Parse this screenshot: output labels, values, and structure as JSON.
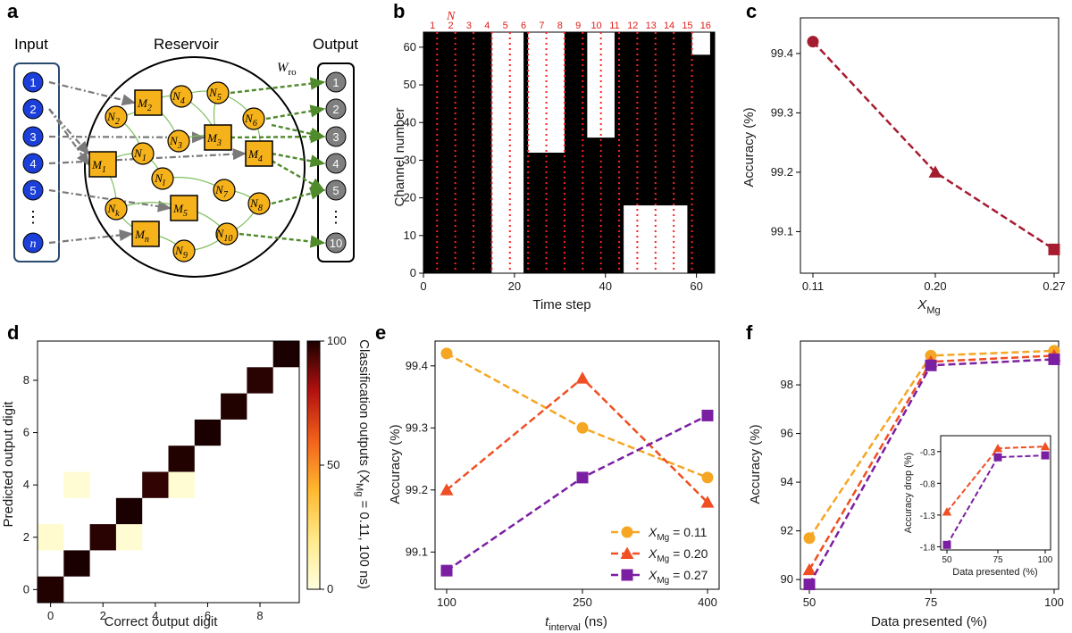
{
  "panel_letters": [
    "a",
    "b",
    "c",
    "d",
    "e",
    "f"
  ],
  "diagram": {
    "input_title": "Input",
    "reservoir_title": "Reservoir",
    "output_title": "Output",
    "wro_label": "W",
    "wro_sub": "ro",
    "input_nodes": [
      "1",
      "2",
      "3",
      "4",
      "5",
      "⋮",
      "n"
    ],
    "output_nodes": [
      "1",
      "2",
      "3",
      "4",
      "5",
      "⋮",
      "10"
    ],
    "memristors": [
      "M2",
      "M3",
      "M1",
      "M4",
      "M5",
      "Mn"
    ],
    "neurons": [
      "N2",
      "N4",
      "N5",
      "N6",
      "N3",
      "N1",
      "Nl",
      "N7",
      "N8",
      "Nk",
      "N9",
      "N10"
    ],
    "colors": {
      "input": "#1b3fd8",
      "output": "#7f7f7f",
      "reservoir_node": "#f5b21b",
      "mem_edge": "#7fbf5f",
      "readout": "#4f8a2b",
      "dash_gray": "#7a7a7a"
    }
  },
  "chart_data": [
    {
      "id": "b",
      "type": "heatmap",
      "xlabel": "Time step",
      "ylabel": "Channel number",
      "xticks": [
        0,
        20,
        40,
        60
      ],
      "yticks": [
        0,
        10,
        20,
        30,
        40,
        50,
        60
      ],
      "xlim": [
        0,
        64
      ],
      "ylim": [
        0,
        64
      ],
      "segment_header": "N",
      "segments": [
        "1",
        "2",
        "3",
        "4",
        "5",
        "6",
        "7",
        "8",
        "9",
        "10",
        "11",
        "12",
        "13",
        "14",
        "15",
        "16"
      ],
      "white_regions": [
        {
          "x0": 15,
          "x1": 22,
          "y0": 0,
          "y1": 64
        },
        {
          "x0": 23,
          "x1": 31,
          "y0": 32,
          "y1": 64
        },
        {
          "x0": 36,
          "x1": 42,
          "y0": 36,
          "y1": 64
        },
        {
          "x0": 44,
          "x1": 58,
          "y0": 0,
          "y1": 18
        },
        {
          "x0": 59,
          "x1": 63,
          "y0": 58,
          "y1": 64
        }
      ],
      "colors": {
        "on": "#ffffff",
        "off": "#000000",
        "separator": "#ff1f1f"
      }
    },
    {
      "id": "c",
      "type": "line",
      "xlabel": "X",
      "xlabel_sub": "Mg",
      "ylabel": "Accuracy (%)",
      "categories": [
        "0.11",
        "0.20",
        "0.27"
      ],
      "values": [
        99.42,
        99.2,
        99.07
      ],
      "ylim": [
        99.03,
        99.46
      ],
      "yticks": [
        99.1,
        99.2,
        99.3,
        99.4
      ],
      "color": "#a51c30"
    },
    {
      "id": "d",
      "type": "heatmap",
      "xlabel": "Correct output digit",
      "ylabel": "Predicted output digit",
      "xticks": [
        0,
        2,
        4,
        6,
        8
      ],
      "yticks": [
        0,
        2,
        4,
        6,
        8
      ],
      "diagonal": [
        99,
        100,
        98,
        100,
        97,
        99,
        100,
        99,
        98,
        100
      ],
      "off_diagonal": [
        {
          "x": 0,
          "y": 2,
          "v": 4
        },
        {
          "x": 1,
          "y": 4,
          "v": 3
        },
        {
          "x": 3,
          "y": 2,
          "v": 3
        },
        {
          "x": 5,
          "y": 4,
          "v": 3
        }
      ],
      "colorbar": {
        "label": "Classification outputs (X",
        "label_sub": "Mg",
        "label_tail": " = 0.11, 100 ns)",
        "ticks": [
          0,
          50,
          100
        ],
        "range": [
          0,
          100
        ]
      }
    },
    {
      "id": "e",
      "type": "line",
      "xlabel": "t",
      "xlabel_sub": "interval",
      "xlabel_tail": " (ns)",
      "ylabel": "Accuracy (%)",
      "categories": [
        "100",
        "250",
        "400"
      ],
      "ylim": [
        99.04,
        99.44
      ],
      "yticks": [
        99.1,
        99.2,
        99.3,
        99.4
      ],
      "legend_position": "bottom-right",
      "series": [
        {
          "name": "X",
          "sub": "Mg",
          "tail": " = 0.11",
          "values": [
            99.42,
            99.3,
            99.22
          ],
          "color": "#f5a623",
          "marker": "circle"
        },
        {
          "name": "X",
          "sub": "Mg",
          "tail": " = 0.20",
          "values": [
            99.2,
            99.38,
            99.18
          ],
          "color": "#f04e23",
          "marker": "triangle"
        },
        {
          "name": "X",
          "sub": "Mg",
          "tail": " = 0.27",
          "values": [
            99.07,
            99.22,
            99.32
          ],
          "color": "#7b1fa2",
          "marker": "square"
        }
      ]
    },
    {
      "id": "f",
      "type": "line",
      "xlabel": "Data presented (%)",
      "ylabel": "Accuracy (%)",
      "categories": [
        "50",
        "75",
        "100"
      ],
      "ylim": [
        89.6,
        99.8
      ],
      "yticks": [
        90,
        92,
        94,
        96,
        98
      ],
      "series": [
        {
          "values": [
            91.7,
            99.2,
            99.4
          ],
          "color": "#f5a623",
          "marker": "circle"
        },
        {
          "values": [
            90.4,
            98.95,
            99.2
          ],
          "color": "#f04e23",
          "marker": "triangle"
        },
        {
          "values": [
            89.8,
            98.8,
            99.05
          ],
          "color": "#7b1fa2",
          "marker": "square"
        }
      ],
      "inset": {
        "xlabel": "Data presented (%)",
        "ylabel": "Accuracy drop (%)",
        "categories": [
          "50",
          "75",
          "100"
        ],
        "ylim": [
          -1.85,
          -0.05
        ],
        "yticks": [
          -0.3,
          -0.8,
          -1.3,
          -1.8
        ],
        "series": [
          {
            "values": [
              -1.25,
              -0.25,
              -0.22
            ],
            "color": "#f04e23",
            "marker": "triangle"
          },
          {
            "values": [
              -1.77,
              -0.39,
              -0.36
            ],
            "color": "#7b1fa2",
            "marker": "square"
          }
        ]
      }
    }
  ]
}
